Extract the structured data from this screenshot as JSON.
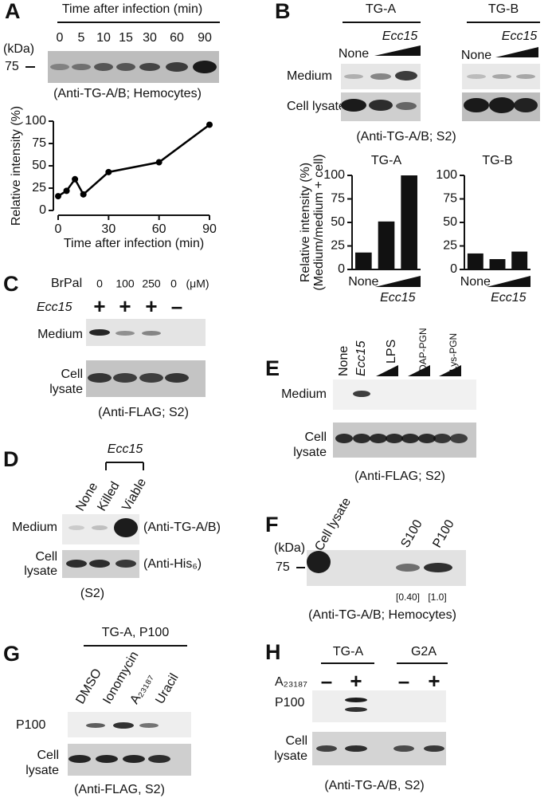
{
  "chart_data": [
    {
      "type": "line",
      "x": [
        0,
        5,
        10,
        15,
        30,
        60,
        90
      ],
      "values": [
        16,
        22,
        35,
        18,
        43,
        54,
        96
      ],
      "xlim": [
        0,
        90
      ],
      "ylim": [
        0,
        100
      ],
      "xticks": [
        0,
        30,
        60,
        90
      ],
      "yticks": [
        0,
        25,
        50,
        75,
        100
      ],
      "xlabel": "Time after infection (min)",
      "ylabel": "Relative intensity (%)",
      "color": "#000000"
    },
    {
      "type": "bar",
      "title": "TG-A",
      "categories": [
        "None",
        null,
        null
      ],
      "values": [
        18,
        51,
        100
      ],
      "ylim": [
        0,
        100
      ],
      "yticks": [
        0,
        25,
        50,
        75,
        100
      ],
      "ylabel": [
        "Relative intensity (%)",
        "(Medium/medium + cell)"
      ],
      "treatment": "Ecc15",
      "color": "#111111"
    },
    {
      "type": "bar",
      "title": "TG-B",
      "categories": [
        "None",
        null,
        null
      ],
      "values": [
        17,
        11,
        19
      ],
      "ylim": [
        0,
        100
      ],
      "yticks": [
        0,
        25,
        50,
        75,
        100
      ],
      "treatment": "Ecc15",
      "color": "#111111"
    }
  ],
  "panels": {
    "A": {
      "letter": "A",
      "title": "Time after infection (min)",
      "lanes": [
        "0",
        "5",
        "10",
        "15",
        "30",
        "60",
        "90"
      ],
      "unit": "(kDa)",
      "marker": "75",
      "caption": "(Anti-TG-A/B; Hemocytes)"
    },
    "B": {
      "letter": "B",
      "groups": [
        "TG-A",
        "TG-B"
      ],
      "none": [
        "None",
        "None"
      ],
      "treatment": [
        "Ecc15",
        "Ecc15"
      ],
      "rows": [
        "Medium",
        "Cell lysate"
      ],
      "caption": "(Anti-TG-A/B; S2)"
    },
    "C": {
      "letter": "C",
      "reagent": "BrPal",
      "doses": [
        "0",
        "100",
        "250",
        "0"
      ],
      "dose_unit": "(μM)",
      "treatment": "Ecc15",
      "signs": [
        "+",
        "+",
        "+",
        "–"
      ],
      "medium": "Medium",
      "lysate": [
        "Cell",
        "lysate"
      ],
      "caption": "(Anti-FLAG; S2)"
    },
    "D": {
      "letter": "D",
      "treatment": "Ecc15",
      "lanes": [
        "None",
        "Killed",
        "Viable"
      ],
      "medium": "Medium",
      "lysate": [
        "Cell",
        "lysate"
      ],
      "antibodies": [
        "(Anti-TG-A/B)",
        "(Anti-His₆)"
      ],
      "caption": "(S2)"
    },
    "E": {
      "letter": "E",
      "lanes": [
        "None",
        "Ecc15",
        "LPS",
        "DAP-PGN",
        "Lys-PGN"
      ],
      "medium": "Medium",
      "lysate": [
        "Cell",
        "lysate"
      ],
      "caption": "(Anti-FLAG; S2)"
    },
    "F": {
      "letter": "F",
      "lanes": [
        "Cell lysate",
        "S100",
        "P100"
      ],
      "unit": "(kDa)",
      "marker": "75",
      "ratios": [
        "[0.40]",
        "[1.0]"
      ],
      "caption": "(Anti-TG-A/B; Hemocytes)"
    },
    "G": {
      "letter": "G",
      "group": "TG-A, P100",
      "lanes": [
        "DMSO",
        "Ionomycin",
        "A₂₃₁₈₇",
        "Uracil"
      ],
      "rows": [
        "P100"
      ],
      "lysate": [
        "Cell",
        "lysate"
      ],
      "caption": "(Anti-FLAG, S2)"
    },
    "H": {
      "letter": "H",
      "groups": [
        "TG-A",
        "G2A"
      ],
      "reagent": "A₂₃₁₈₇",
      "signs": [
        "–",
        "+",
        "–",
        "+"
      ],
      "rows": [
        "P100"
      ],
      "lysate": [
        "Cell",
        "lysate"
      ],
      "caption": "(Anti-TG-A/B, S2)"
    }
  }
}
